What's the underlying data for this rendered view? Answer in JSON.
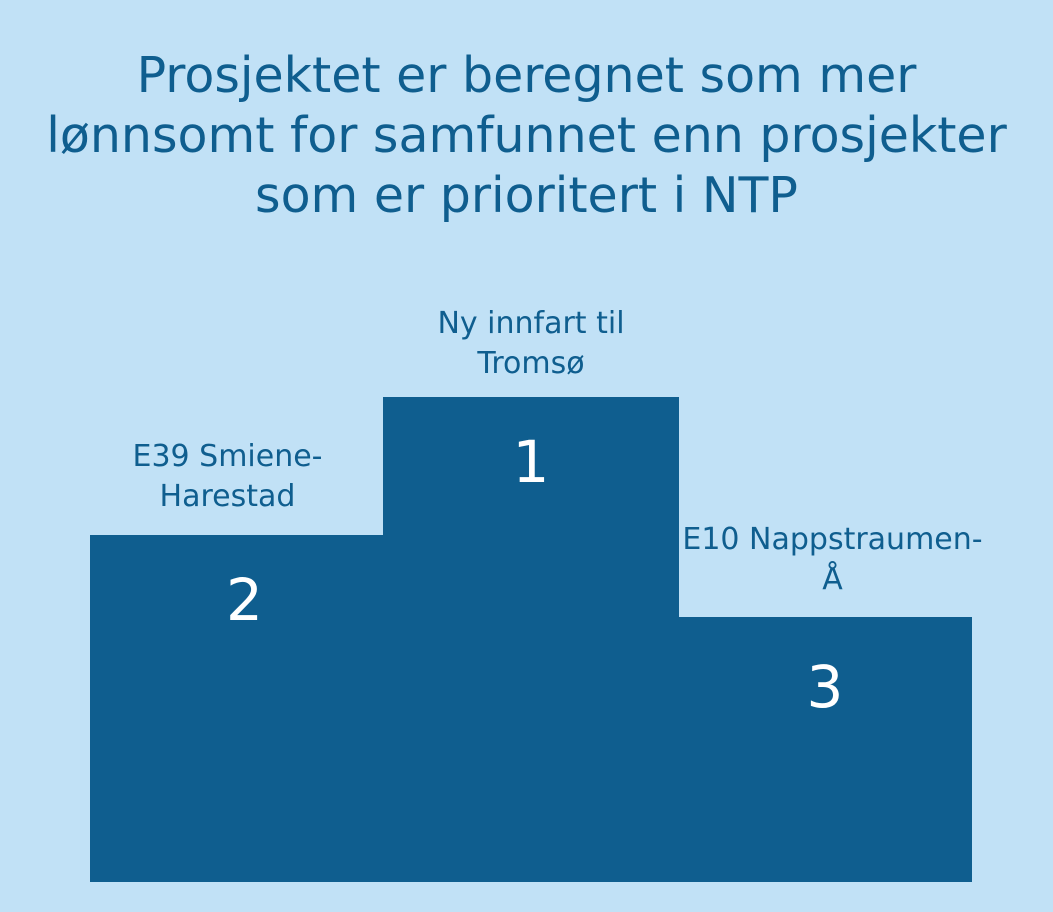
{
  "colors": {
    "background": "#c1e1f6",
    "accent": "#0f5e8f",
    "rank_text": "#ffffff"
  },
  "title": "Prosjektet er beregnet som mer lønnsomt for samfunnet enn prosjekter som er prioritert i NTP",
  "podium": {
    "first": {
      "rank": "1",
      "label": "Ny innfart til Tromsø"
    },
    "second": {
      "rank": "2",
      "label": "E39 Smiene-Harestad"
    },
    "third": {
      "rank": "3",
      "label": "E10 Nappstraumen-Å"
    }
  }
}
